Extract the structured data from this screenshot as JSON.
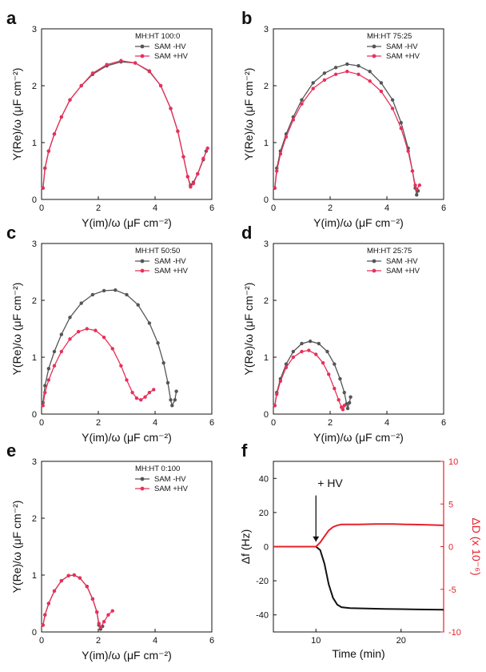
{
  "figure": {
    "panels_label": "Nyquist capacitance plots and QCM-D trace"
  },
  "chart_data": [
    {
      "panel": "a",
      "type": "line",
      "legend_title": "MH:HT 100:0",
      "xlabel": "Y(im)/ω (μF cm⁻²)",
      "ylabel": "Y(Re)/ω (μF cm⁻²)",
      "xlim": [
        0,
        6
      ],
      "ylim": [
        0,
        3
      ],
      "xticks": [
        "0",
        "2",
        "4",
        "6"
      ],
      "yticks": [
        "0",
        "1",
        "2",
        "3"
      ],
      "legend_position": "top-right",
      "series": [
        {
          "name": "SAM -HV",
          "color": "#555555",
          "points": [
            [
              0.05,
              0.2
            ],
            [
              0.12,
              0.55
            ],
            [
              0.25,
              0.85
            ],
            [
              0.45,
              1.15
            ],
            [
              0.7,
              1.45
            ],
            [
              1.0,
              1.75
            ],
            [
              1.4,
              2.0
            ],
            [
              1.8,
              2.2
            ],
            [
              2.3,
              2.35
            ],
            [
              2.8,
              2.42
            ],
            [
              3.3,
              2.4
            ],
            [
              3.8,
              2.25
            ],
            [
              4.2,
              2.0
            ],
            [
              4.55,
              1.6
            ],
            [
              4.8,
              1.2
            ],
            [
              5.0,
              0.75
            ],
            [
              5.15,
              0.4
            ],
            [
              5.25,
              0.25
            ],
            [
              5.35,
              0.3
            ],
            [
              5.5,
              0.45
            ],
            [
              5.7,
              0.7
            ],
            [
              5.8,
              0.85
            ]
          ]
        },
        {
          "name": "SAM +HV",
          "color": "#e8305a",
          "points": [
            [
              0.05,
              0.2
            ],
            [
              0.12,
              0.55
            ],
            [
              0.25,
              0.85
            ],
            [
              0.45,
              1.15
            ],
            [
              0.7,
              1.45
            ],
            [
              1.0,
              1.75
            ],
            [
              1.4,
              2.0
            ],
            [
              1.8,
              2.22
            ],
            [
              2.3,
              2.37
            ],
            [
              2.8,
              2.44
            ],
            [
              3.3,
              2.4
            ],
            [
              3.8,
              2.26
            ],
            [
              4.2,
              2.0
            ],
            [
              4.55,
              1.6
            ],
            [
              4.8,
              1.2
            ],
            [
              5.0,
              0.75
            ],
            [
              5.15,
              0.4
            ],
            [
              5.25,
              0.22
            ],
            [
              5.35,
              0.28
            ],
            [
              5.5,
              0.45
            ],
            [
              5.7,
              0.72
            ],
            [
              5.85,
              0.9
            ]
          ]
        }
      ]
    },
    {
      "panel": "b",
      "type": "line",
      "legend_title": "MH:HT 75:25",
      "xlabel": "Y(im)/ω (μF cm⁻²)",
      "ylabel": "Y(Re)/ω (μF cm⁻²)",
      "xlim": [
        0,
        6
      ],
      "ylim": [
        0,
        3
      ],
      "xticks": [
        "0",
        "2",
        "4",
        "6"
      ],
      "yticks": [
        "0",
        "1",
        "2",
        "3"
      ],
      "legend_position": "top-right",
      "series": [
        {
          "name": "SAM -HV",
          "color": "#555555",
          "points": [
            [
              0.05,
              0.2
            ],
            [
              0.12,
              0.55
            ],
            [
              0.25,
              0.85
            ],
            [
              0.45,
              1.15
            ],
            [
              0.7,
              1.45
            ],
            [
              1.0,
              1.75
            ],
            [
              1.4,
              2.05
            ],
            [
              1.8,
              2.22
            ],
            [
              2.2,
              2.32
            ],
            [
              2.6,
              2.38
            ],
            [
              3.0,
              2.35
            ],
            [
              3.4,
              2.25
            ],
            [
              3.8,
              2.05
            ],
            [
              4.2,
              1.75
            ],
            [
              4.5,
              1.35
            ],
            [
              4.75,
              0.9
            ],
            [
              4.9,
              0.5
            ],
            [
              5.0,
              0.2
            ],
            [
              5.05,
              0.08
            ],
            [
              5.1,
              0.15
            ]
          ]
        },
        {
          "name": "SAM +HV",
          "color": "#e8305a",
          "points": [
            [
              0.05,
              0.2
            ],
            [
              0.12,
              0.5
            ],
            [
              0.25,
              0.8
            ],
            [
              0.45,
              1.1
            ],
            [
              0.7,
              1.4
            ],
            [
              1.0,
              1.68
            ],
            [
              1.4,
              1.95
            ],
            [
              1.8,
              2.1
            ],
            [
              2.2,
              2.2
            ],
            [
              2.6,
              2.25
            ],
            [
              3.0,
              2.2
            ],
            [
              3.4,
              2.08
            ],
            [
              3.8,
              1.9
            ],
            [
              4.2,
              1.6
            ],
            [
              4.5,
              1.25
            ],
            [
              4.75,
              0.85
            ],
            [
              4.9,
              0.5
            ],
            [
              5.0,
              0.25
            ],
            [
              5.05,
              0.18
            ],
            [
              5.15,
              0.25
            ]
          ]
        }
      ]
    },
    {
      "panel": "c",
      "type": "line",
      "legend_title": "MH:HT 50:50",
      "xlabel": "Y(im)/ω (μF cm⁻²)",
      "ylabel": "Y(Re)/ω (μF cm⁻²)",
      "xlim": [
        0,
        6
      ],
      "ylim": [
        0,
        3
      ],
      "xticks": [
        "0",
        "2",
        "4",
        "6"
      ],
      "yticks": [
        "0",
        "1",
        "2",
        "3"
      ],
      "legend_position": "top-right",
      "series": [
        {
          "name": "SAM -HV",
          "color": "#555555",
          "points": [
            [
              0.05,
              0.2
            ],
            [
              0.12,
              0.5
            ],
            [
              0.25,
              0.8
            ],
            [
              0.45,
              1.1
            ],
            [
              0.7,
              1.4
            ],
            [
              1.0,
              1.7
            ],
            [
              1.4,
              1.95
            ],
            [
              1.8,
              2.1
            ],
            [
              2.2,
              2.17
            ],
            [
              2.6,
              2.18
            ],
            [
              3.0,
              2.1
            ],
            [
              3.4,
              1.92
            ],
            [
              3.8,
              1.6
            ],
            [
              4.1,
              1.25
            ],
            [
              4.3,
              0.9
            ],
            [
              4.45,
              0.55
            ],
            [
              4.55,
              0.25
            ],
            [
              4.6,
              0.15
            ],
            [
              4.7,
              0.25
            ],
            [
              4.75,
              0.4
            ]
          ]
        },
        {
          "name": "SAM +HV",
          "color": "#e8305a",
          "points": [
            [
              0.05,
              0.15
            ],
            [
              0.12,
              0.38
            ],
            [
              0.25,
              0.6
            ],
            [
              0.45,
              0.85
            ],
            [
              0.7,
              1.1
            ],
            [
              1.0,
              1.32
            ],
            [
              1.3,
              1.45
            ],
            [
              1.6,
              1.5
            ],
            [
              1.9,
              1.47
            ],
            [
              2.2,
              1.35
            ],
            [
              2.5,
              1.15
            ],
            [
              2.8,
              0.85
            ],
            [
              3.0,
              0.6
            ],
            [
              3.2,
              0.38
            ],
            [
              3.35,
              0.28
            ],
            [
              3.5,
              0.25
            ],
            [
              3.65,
              0.3
            ],
            [
              3.8,
              0.38
            ],
            [
              3.95,
              0.43
            ]
          ]
        }
      ]
    },
    {
      "panel": "d",
      "type": "line",
      "legend_title": "MH:HT 25:75",
      "xlabel": "Y(im)/ω (μF cm⁻²)",
      "ylabel": "Y(Re)/ω (μF cm⁻²)",
      "xlim": [
        0,
        6
      ],
      "ylim": [
        0,
        3
      ],
      "xticks": [
        "0",
        "2",
        "4",
        "6"
      ],
      "yticks": [
        "0",
        "1",
        "2",
        "3"
      ],
      "legend_position": "top-right",
      "series": [
        {
          "name": "SAM -HV",
          "color": "#555555",
          "points": [
            [
              0.05,
              0.15
            ],
            [
              0.12,
              0.38
            ],
            [
              0.25,
              0.62
            ],
            [
              0.45,
              0.88
            ],
            [
              0.7,
              1.1
            ],
            [
              1.0,
              1.24
            ],
            [
              1.3,
              1.28
            ],
            [
              1.6,
              1.24
            ],
            [
              1.9,
              1.1
            ],
            [
              2.15,
              0.88
            ],
            [
              2.35,
              0.62
            ],
            [
              2.5,
              0.38
            ],
            [
              2.58,
              0.18
            ],
            [
              2.62,
              0.1
            ],
            [
              2.68,
              0.2
            ],
            [
              2.72,
              0.3
            ]
          ]
        },
        {
          "name": "SAM +HV",
          "color": "#e8305a",
          "points": [
            [
              0.05,
              0.15
            ],
            [
              0.12,
              0.35
            ],
            [
              0.25,
              0.58
            ],
            [
              0.45,
              0.82
            ],
            [
              0.7,
              1.0
            ],
            [
              1.0,
              1.1
            ],
            [
              1.25,
              1.12
            ],
            [
              1.5,
              1.05
            ],
            [
              1.75,
              0.9
            ],
            [
              1.95,
              0.7
            ],
            [
              2.15,
              0.45
            ],
            [
              2.3,
              0.25
            ],
            [
              2.4,
              0.12
            ],
            [
              2.45,
              0.08
            ],
            [
              2.5,
              0.15
            ]
          ]
        }
      ]
    },
    {
      "panel": "e",
      "type": "line",
      "legend_title": "MH:HT 0:100",
      "xlabel": "Y(im)/ω (μF cm⁻²)",
      "ylabel": "Y(Re)/ω (μF cm⁻²)",
      "xlim": [
        0,
        6
      ],
      "ylim": [
        0,
        3
      ],
      "xticks": [
        "0",
        "2",
        "4",
        "6"
      ],
      "yticks": [
        "0",
        "1",
        "2",
        "3"
      ],
      "legend_position": "top-right",
      "series": [
        {
          "name": "SAM -HV",
          "color": "#555555",
          "points": [
            [
              0.05,
              0.12
            ],
            [
              0.12,
              0.3
            ],
            [
              0.25,
              0.5
            ],
            [
              0.45,
              0.72
            ],
            [
              0.7,
              0.9
            ],
            [
              0.95,
              0.99
            ],
            [
              1.15,
              1.0
            ],
            [
              1.35,
              0.95
            ],
            [
              1.6,
              0.8
            ],
            [
              1.8,
              0.58
            ],
            [
              1.95,
              0.35
            ],
            [
              2.02,
              0.12
            ],
            [
              2.08,
              0.05
            ],
            [
              2.15,
              0.1
            ]
          ]
        },
        {
          "name": "SAM +HV",
          "color": "#e8305a",
          "points": [
            [
              0.05,
              0.12
            ],
            [
              0.12,
              0.3
            ],
            [
              0.25,
              0.5
            ],
            [
              0.45,
              0.72
            ],
            [
              0.7,
              0.9
            ],
            [
              0.95,
              0.99
            ],
            [
              1.15,
              1.0
            ],
            [
              1.35,
              0.95
            ],
            [
              1.6,
              0.8
            ],
            [
              1.8,
              0.58
            ],
            [
              1.95,
              0.35
            ],
            [
              2.02,
              0.15
            ],
            [
              2.08,
              0.08
            ],
            [
              2.2,
              0.18
            ],
            [
              2.35,
              0.3
            ],
            [
              2.5,
              0.37
            ]
          ]
        }
      ]
    },
    {
      "panel": "f",
      "type": "line",
      "xlabel": "Time (min)",
      "ylabel_left": "Δf (Hz)",
      "ylabel_right": "ΔD (x 10⁻⁶)",
      "xlim": [
        5,
        25
      ],
      "ylim_left": [
        -50,
        50
      ],
      "ylim_right": [
        -10,
        10
      ],
      "xticks": [
        "10",
        "20"
      ],
      "yticks_left": [
        "40",
        "20",
        "0",
        "-20",
        "-40"
      ],
      "yticks_right": [
        "10",
        "5",
        "0",
        "-5",
        "-10"
      ],
      "annotation": "+ HV",
      "annotation_x": 10,
      "series": [
        {
          "name": "Δf",
          "axis": "left",
          "color": "#111111",
          "points": [
            [
              5,
              0
            ],
            [
              7,
              0
            ],
            [
              9,
              0
            ],
            [
              10,
              0
            ],
            [
              10.5,
              -2
            ],
            [
              11,
              -10
            ],
            [
              11.5,
              -22
            ],
            [
              12,
              -30
            ],
            [
              12.5,
              -34
            ],
            [
              13,
              -35.5
            ],
            [
              14,
              -36
            ],
            [
              16,
              -36.3
            ],
            [
              18,
              -36.5
            ],
            [
              20,
              -36.6
            ],
            [
              22,
              -36.8
            ],
            [
              25,
              -37
            ]
          ]
        },
        {
          "name": "ΔD",
          "axis": "right",
          "color": "#e8202a",
          "points": [
            [
              5,
              0
            ],
            [
              7,
              0
            ],
            [
              9,
              0
            ],
            [
              10,
              0
            ],
            [
              10.5,
              0.5
            ],
            [
              11,
              1.2
            ],
            [
              11.5,
              1.9
            ],
            [
              12,
              2.3
            ],
            [
              12.5,
              2.5
            ],
            [
              13,
              2.6
            ],
            [
              15,
              2.6
            ],
            [
              17,
              2.65
            ],
            [
              19,
              2.65
            ],
            [
              21,
              2.6
            ],
            [
              23,
              2.55
            ],
            [
              25,
              2.5
            ]
          ]
        }
      ]
    }
  ]
}
